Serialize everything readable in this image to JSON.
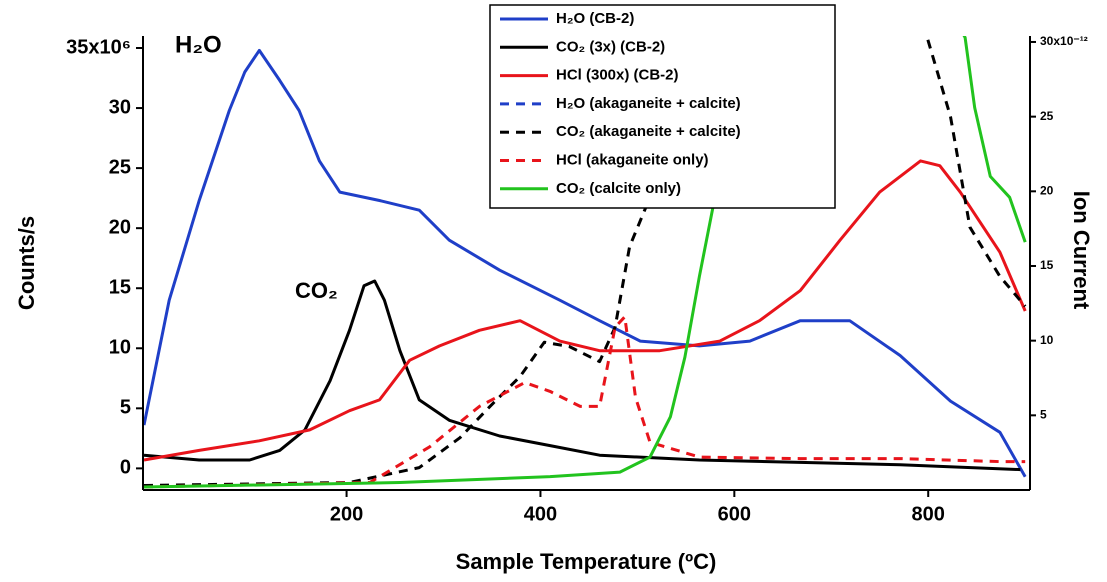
{
  "chart_data": {
    "type": "line",
    "xlabel": "Sample Temperature (ºC)",
    "ylabel": "Counts/s",
    "y2label": "Ion Current",
    "annotations": [
      {
        "text": "H₂O",
        "color": "#1f3fc8"
      },
      {
        "text": "CO₂",
        "color": "#000000"
      }
    ],
    "xlim": [
      -10,
      905
    ],
    "xticks": [
      200,
      400,
      600,
      800
    ],
    "ylim": [
      -1.8,
      36
    ],
    "yticks": [
      0,
      5,
      10,
      15,
      20,
      25,
      30,
      {
        "value": 35,
        "label": "35x10⁶"
      }
    ],
    "y2lim": [
      0,
      30.4
    ],
    "y2ticks": [
      5,
      10,
      15,
      20,
      25,
      {
        "value": 30,
        "label": "30x10⁻¹²"
      }
    ],
    "legend": "top-center",
    "series": [
      {
        "name": "H₂O (CB-2)",
        "color": "#1f3fc8",
        "dash": false,
        "axis": "y",
        "x": [
          -9,
          17,
          48,
          79,
          95,
          110,
          131,
          151,
          172,
          193,
          234,
          275,
          306,
          358,
          420,
          461,
          503,
          564,
          616,
          668,
          719,
          771,
          823,
          874,
          900
        ],
        "values": [
          3.6,
          14,
          22.3,
          29.8,
          33,
          34.8,
          32.3,
          29.8,
          25.6,
          23,
          22.3,
          21.5,
          19,
          16.5,
          14,
          12.3,
          10.6,
          10.2,
          10.6,
          12.3,
          12.3,
          9.4,
          5.6,
          3,
          -0.7
        ]
      },
      {
        "name": "CO₂ (3x) (CB-2)",
        "color": "#000000",
        "dash": false,
        "axis": "y",
        "x": [
          -9,
          48,
          100,
          131,
          157,
          183,
          203,
          218,
          229,
          239,
          255,
          275,
          306,
          358,
          410,
          461,
          564,
          668,
          771,
          895
        ],
        "values": [
          1.1,
          0.7,
          0.7,
          1.5,
          3.2,
          7.3,
          11.5,
          15.2,
          15.6,
          14,
          9.8,
          5.7,
          4,
          2.7,
          1.9,
          1.1,
          0.7,
          0.5,
          0.3,
          -0.1
        ]
      },
      {
        "name": "HCl (300x) (CB-2)",
        "color": "#e8141b",
        "dash": false,
        "axis": "y",
        "x": [
          -9,
          48,
          110,
          162,
          203,
          234,
          265,
          296,
          337,
          379,
          420,
          461,
          523,
          585,
          626,
          668,
          709,
          750,
          792,
          812,
          833,
          874,
          900
        ],
        "values": [
          0.7,
          1.5,
          2.3,
          3.2,
          4.8,
          5.7,
          9,
          10.2,
          11.5,
          12.3,
          10.6,
          9.8,
          9.8,
          10.6,
          12.3,
          14.8,
          19,
          23,
          25.6,
          25.2,
          23,
          18,
          13.1
        ]
      },
      {
        "name": "H₂O (akaganeite + calcite)",
        "color": "#1f3fc8",
        "dash": true,
        "axis": "y2",
        "x": [],
        "values": []
      },
      {
        "name": "CO₂ (akaganeite + calcite)",
        "color": "#000000",
        "dash": true,
        "axis": "y2",
        "x": [
          -9,
          203,
          275,
          317,
          348,
          379,
          404,
          430,
          461,
          477,
          492,
          513,
          523,
          650,
          790,
          799,
          823,
          843,
          874,
          900
        ],
        "values": [
          0.3,
          0.5,
          1.5,
          3.5,
          5.6,
          7.6,
          9.9,
          9.6,
          8.6,
          10.9,
          16.3,
          19.6,
          31,
          null,
          31,
          30.3,
          25,
          17.6,
          14.3,
          12.3
        ]
      },
      {
        "name": "HCl (akaganeite only)",
        "color": "#e8141b",
        "dash": true,
        "axis": "y2",
        "x": [
          -9,
          224,
          286,
          337,
          384,
          410,
          441,
          461,
          477,
          487,
          498,
          513,
          564,
          668,
          771,
          874,
          900
        ],
        "values": [
          0.2,
          0.5,
          2.9,
          5.6,
          7.2,
          6.6,
          5.6,
          5.6,
          10.9,
          11.6,
          6.2,
          3.2,
          2.2,
          2.1,
          2.1,
          1.9,
          1.9
        ]
      },
      {
        "name": "CO₂ (calcite only)",
        "color": "#22c31e",
        "dash": false,
        "axis": "y2",
        "x": [
          -9,
          255,
          410,
          482,
          513,
          534,
          549,
          564,
          580,
          595,
          606,
          612,
          700,
          832,
          838,
          848,
          864,
          884,
          900
        ],
        "values": [
          0.2,
          0.5,
          0.9,
          1.2,
          2.2,
          4.9,
          8.9,
          14.3,
          19.6,
          25,
          29,
          31,
          null,
          31,
          30.3,
          25.6,
          21,
          19.6,
          16.6
        ]
      }
    ]
  }
}
